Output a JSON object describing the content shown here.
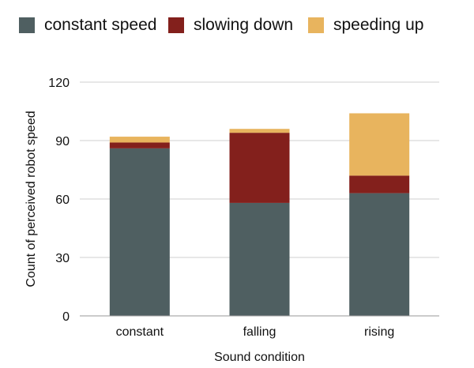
{
  "chart_data": {
    "type": "bar",
    "stacked": true,
    "categories": [
      "constant",
      "falling",
      "rising"
    ],
    "series": [
      {
        "name": "constant speed",
        "color": "#4f5f61",
        "values": [
          86,
          58,
          63
        ]
      },
      {
        "name": "slowing down",
        "color": "#83201c",
        "values": [
          3,
          36,
          9
        ]
      },
      {
        "name": "speeding up",
        "color": "#e8b45e",
        "values": [
          3,
          2,
          32
        ]
      }
    ],
    "xlabel": "Sound condition",
    "ylabel": "Count of perceived robot speed",
    "ylim": [
      0,
      120
    ],
    "yticks": [
      "0",
      "30",
      "60",
      "90",
      "120"
    ],
    "grid": true,
    "legend_position": "top"
  }
}
